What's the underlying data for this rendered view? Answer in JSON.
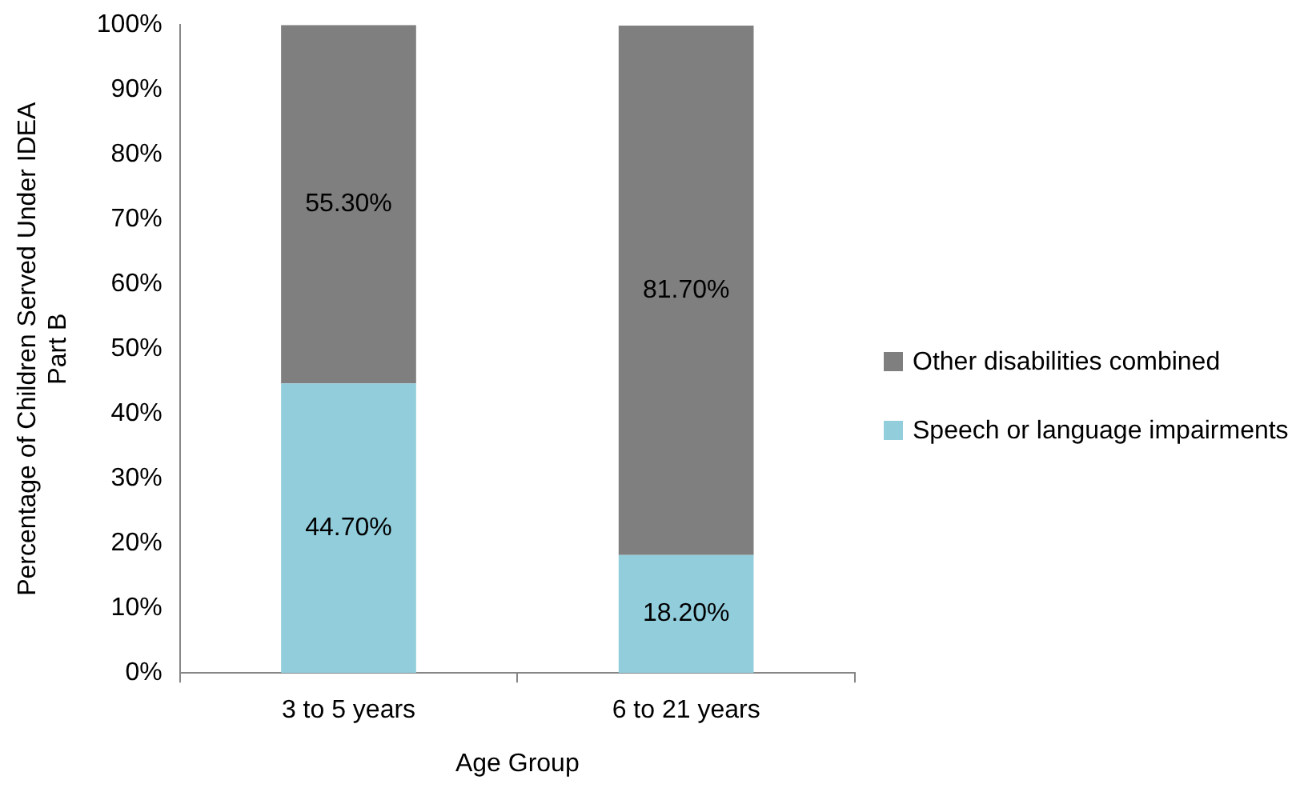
{
  "chart_data": {
    "type": "bar",
    "stacked": true,
    "xlabel": "Age Group",
    "ylabel": "Percentage of Children Served Under IDEA Part B",
    "categories": [
      "3 to 5 years",
      "6 to 21 years"
    ],
    "series": [
      {
        "name": "Speech or language impairments",
        "color": "#92cddc",
        "values": [
          44.7,
          18.2
        ],
        "value_labels": [
          "44.70%",
          "18.20%"
        ]
      },
      {
        "name": "Other disabilities combined",
        "color": "#7f7f7f",
        "values": [
          55.3,
          81.7
        ],
        "value_labels": [
          "55.30%",
          "81.70%"
        ]
      }
    ],
    "ylim": [
      0,
      100
    ],
    "yticks": [
      {
        "value": 0,
        "label": "0%"
      },
      {
        "value": 10,
        "label": "10%"
      },
      {
        "value": 20,
        "label": "20%"
      },
      {
        "value": 30,
        "label": "30%"
      },
      {
        "value": 40,
        "label": "40%"
      },
      {
        "value": 50,
        "label": "50%"
      },
      {
        "value": 60,
        "label": "60%"
      },
      {
        "value": 70,
        "label": "70%"
      },
      {
        "value": 80,
        "label": "80%"
      },
      {
        "value": 90,
        "label": "90%"
      },
      {
        "value": 100,
        "label": "100%"
      }
    ],
    "grid": false,
    "legend": "right"
  }
}
